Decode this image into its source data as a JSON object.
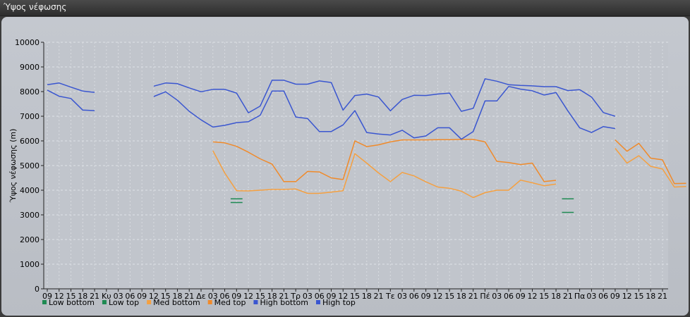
{
  "window": {
    "title": "Ύψος νέφωσης"
  },
  "chart_data": {
    "type": "line",
    "title": "",
    "xlabel": "",
    "ylabel": "Ύψος νέφωσης (m)",
    "ylim": [
      0,
      10000
    ],
    "yticks": [
      0,
      1000,
      2000,
      3000,
      4000,
      5000,
      6000,
      7000,
      8000,
      9000,
      10000
    ],
    "grid": true,
    "legend_position": "bottom-left",
    "categories": [
      "09",
      "12",
      "15",
      "18",
      "21",
      "Κυ",
      "03",
      "06",
      "09",
      "12",
      "15",
      "18",
      "21",
      "Δε",
      "03",
      "06",
      "09",
      "12",
      "15",
      "18",
      "21",
      "Τρ",
      "03",
      "06",
      "09",
      "12",
      "15",
      "18",
      "21",
      "Τε",
      "03",
      "06",
      "09",
      "12",
      "15",
      "18",
      "21",
      "Πέ",
      "03",
      "06",
      "09",
      "12",
      "15",
      "18",
      "21",
      "Πα",
      "03",
      "06",
      "09",
      "12",
      "15",
      "18",
      "21"
    ],
    "colors": {
      "Low bottom": "#1e8a52",
      "Low top": "#1e8a52",
      "Med bottom": "#f5a040",
      "Med top": "#f08a2a",
      "High bottom": "#3a56d0",
      "High top": "#3a56d0"
    },
    "series": [
      {
        "name": "Low bottom",
        "segments": [
          [
            [
              15.5,
              3500
            ],
            [
              16.5,
              3500
            ]
          ],
          [
            [
              43.5,
              3100
            ],
            [
              44.5,
              3100
            ]
          ]
        ]
      },
      {
        "name": "Low top",
        "segments": [
          [
            [
              15.5,
              3650
            ],
            [
              16.5,
              3650
            ]
          ],
          [
            [
              43.5,
              3650
            ],
            [
              44.5,
              3650
            ]
          ]
        ]
      },
      {
        "name": "Med bottom",
        "segments": [
          [
            [
              14,
              5600
            ],
            [
              15,
              4700
            ],
            [
              16,
              3980
            ],
            [
              17,
              3970
            ],
            [
              18,
              4000
            ],
            [
              19,
              4030
            ],
            [
              20,
              4030
            ],
            [
              21,
              4050
            ],
            [
              22,
              3870
            ],
            [
              23,
              3870
            ],
            [
              24,
              3920
            ],
            [
              25,
              3980
            ],
            [
              26,
              5480
            ],
            [
              27,
              5100
            ],
            [
              28,
              4700
            ],
            [
              29,
              4350
            ],
            [
              30,
              4720
            ],
            [
              31,
              4580
            ],
            [
              32,
              4340
            ],
            [
              33,
              4130
            ],
            [
              34,
              4080
            ],
            [
              35,
              3960
            ],
            [
              36,
              3700
            ],
            [
              37,
              3900
            ],
            [
              38,
              4000
            ],
            [
              39,
              4000
            ],
            [
              40,
              4410
            ],
            [
              41,
              4300
            ],
            [
              42,
              4180
            ],
            [
              43,
              4250
            ]
          ],
          [
            [
              48,
              5700
            ],
            [
              49,
              5100
            ],
            [
              50,
              5400
            ],
            [
              51,
              4970
            ],
            [
              52,
              4860
            ],
            [
              53,
              4130
            ],
            [
              54,
              4150
            ]
          ]
        ]
      },
      {
        "name": "Med top",
        "segments": [
          [
            [
              14,
              5960
            ],
            [
              15,
              5920
            ],
            [
              16,
              5780
            ],
            [
              17,
              5540
            ],
            [
              18,
              5270
            ],
            [
              19,
              5060
            ],
            [
              20,
              4350
            ],
            [
              21,
              4350
            ],
            [
              22,
              4760
            ],
            [
              23,
              4740
            ],
            [
              24,
              4500
            ],
            [
              25,
              4430
            ],
            [
              26,
              6000
            ],
            [
              27,
              5770
            ],
            [
              28,
              5840
            ],
            [
              29,
              5960
            ],
            [
              30,
              6040
            ],
            [
              31,
              6040
            ],
            [
              32,
              6040
            ],
            [
              33,
              6050
            ],
            [
              34,
              6050
            ],
            [
              35,
              6060
            ],
            [
              36,
              6060
            ],
            [
              37,
              5960
            ],
            [
              38,
              5170
            ],
            [
              39,
              5120
            ],
            [
              40,
              5040
            ],
            [
              41,
              5100
            ],
            [
              42,
              4350
            ],
            [
              43,
              4400
            ]
          ],
          [
            [
              48,
              6040
            ],
            [
              49,
              5580
            ],
            [
              50,
              5900
            ],
            [
              51,
              5300
            ],
            [
              52,
              5230
            ],
            [
              53,
              4270
            ],
            [
              54,
              4280
            ]
          ]
        ]
      },
      {
        "name": "High bottom",
        "segments": [
          [
            [
              0,
              8060
            ],
            [
              1,
              7810
            ],
            [
              2,
              7720
            ],
            [
              3,
              7250
            ],
            [
              4,
              7230
            ]
          ],
          [
            [
              9,
              7800
            ],
            [
              10,
              7990
            ],
            [
              11,
              7650
            ],
            [
              12,
              7200
            ],
            [
              13,
              6850
            ],
            [
              14,
              6560
            ],
            [
              15,
              6630
            ],
            [
              16,
              6740
            ],
            [
              17,
              6780
            ],
            [
              18,
              7040
            ],
            [
              19,
              8020
            ],
            [
              20,
              8020
            ],
            [
              21,
              6970
            ],
            [
              22,
              6910
            ],
            [
              23,
              6380
            ],
            [
              24,
              6380
            ],
            [
              25,
              6650
            ],
            [
              26,
              7230
            ],
            [
              27,
              6340
            ],
            [
              28,
              6280
            ],
            [
              29,
              6240
            ],
            [
              30,
              6430
            ],
            [
              31,
              6120
            ],
            [
              32,
              6200
            ],
            [
              33,
              6530
            ],
            [
              34,
              6530
            ],
            [
              35,
              6070
            ],
            [
              36,
              6380
            ],
            [
              37,
              7620
            ],
            [
              38,
              7620
            ],
            [
              39,
              8210
            ],
            [
              40,
              8100
            ],
            [
              41,
              8030
            ],
            [
              42,
              7860
            ],
            [
              43,
              7960
            ],
            [
              44,
              7220
            ],
            [
              45,
              6530
            ],
            [
              46,
              6340
            ],
            [
              47,
              6580
            ],
            [
              48,
              6500
            ]
          ]
        ]
      },
      {
        "name": "High top",
        "segments": [
          [
            [
              0,
              8280
            ],
            [
              1,
              8350
            ],
            [
              2,
              8180
            ],
            [
              3,
              8020
            ],
            [
              4,
              7970
            ]
          ],
          [
            [
              9,
              8220
            ],
            [
              10,
              8350
            ],
            [
              11,
              8320
            ],
            [
              12,
              8150
            ],
            [
              13,
              7990
            ],
            [
              14,
              8090
            ],
            [
              15,
              8090
            ],
            [
              16,
              7940
            ],
            [
              17,
              7140
            ],
            [
              18,
              7410
            ],
            [
              19,
              8460
            ],
            [
              20,
              8460
            ],
            [
              21,
              8300
            ],
            [
              22,
              8300
            ],
            [
              23,
              8430
            ],
            [
              24,
              8370
            ],
            [
              25,
              7250
            ],
            [
              26,
              7840
            ],
            [
              27,
              7900
            ],
            [
              28,
              7780
            ],
            [
              29,
              7220
            ],
            [
              30,
              7680
            ],
            [
              31,
              7850
            ],
            [
              32,
              7840
            ],
            [
              33,
              7900
            ],
            [
              34,
              7940
            ],
            [
              35,
              7200
            ],
            [
              36,
              7320
            ],
            [
              37,
              8520
            ],
            [
              38,
              8420
            ],
            [
              39,
              8280
            ],
            [
              40,
              8250
            ],
            [
              41,
              8230
            ],
            [
              42,
              8200
            ],
            [
              43,
              8200
            ],
            [
              44,
              8040
            ],
            [
              45,
              8080
            ],
            [
              46,
              7780
            ],
            [
              47,
              7150
            ],
            [
              48,
              7000
            ]
          ]
        ]
      }
    ]
  }
}
